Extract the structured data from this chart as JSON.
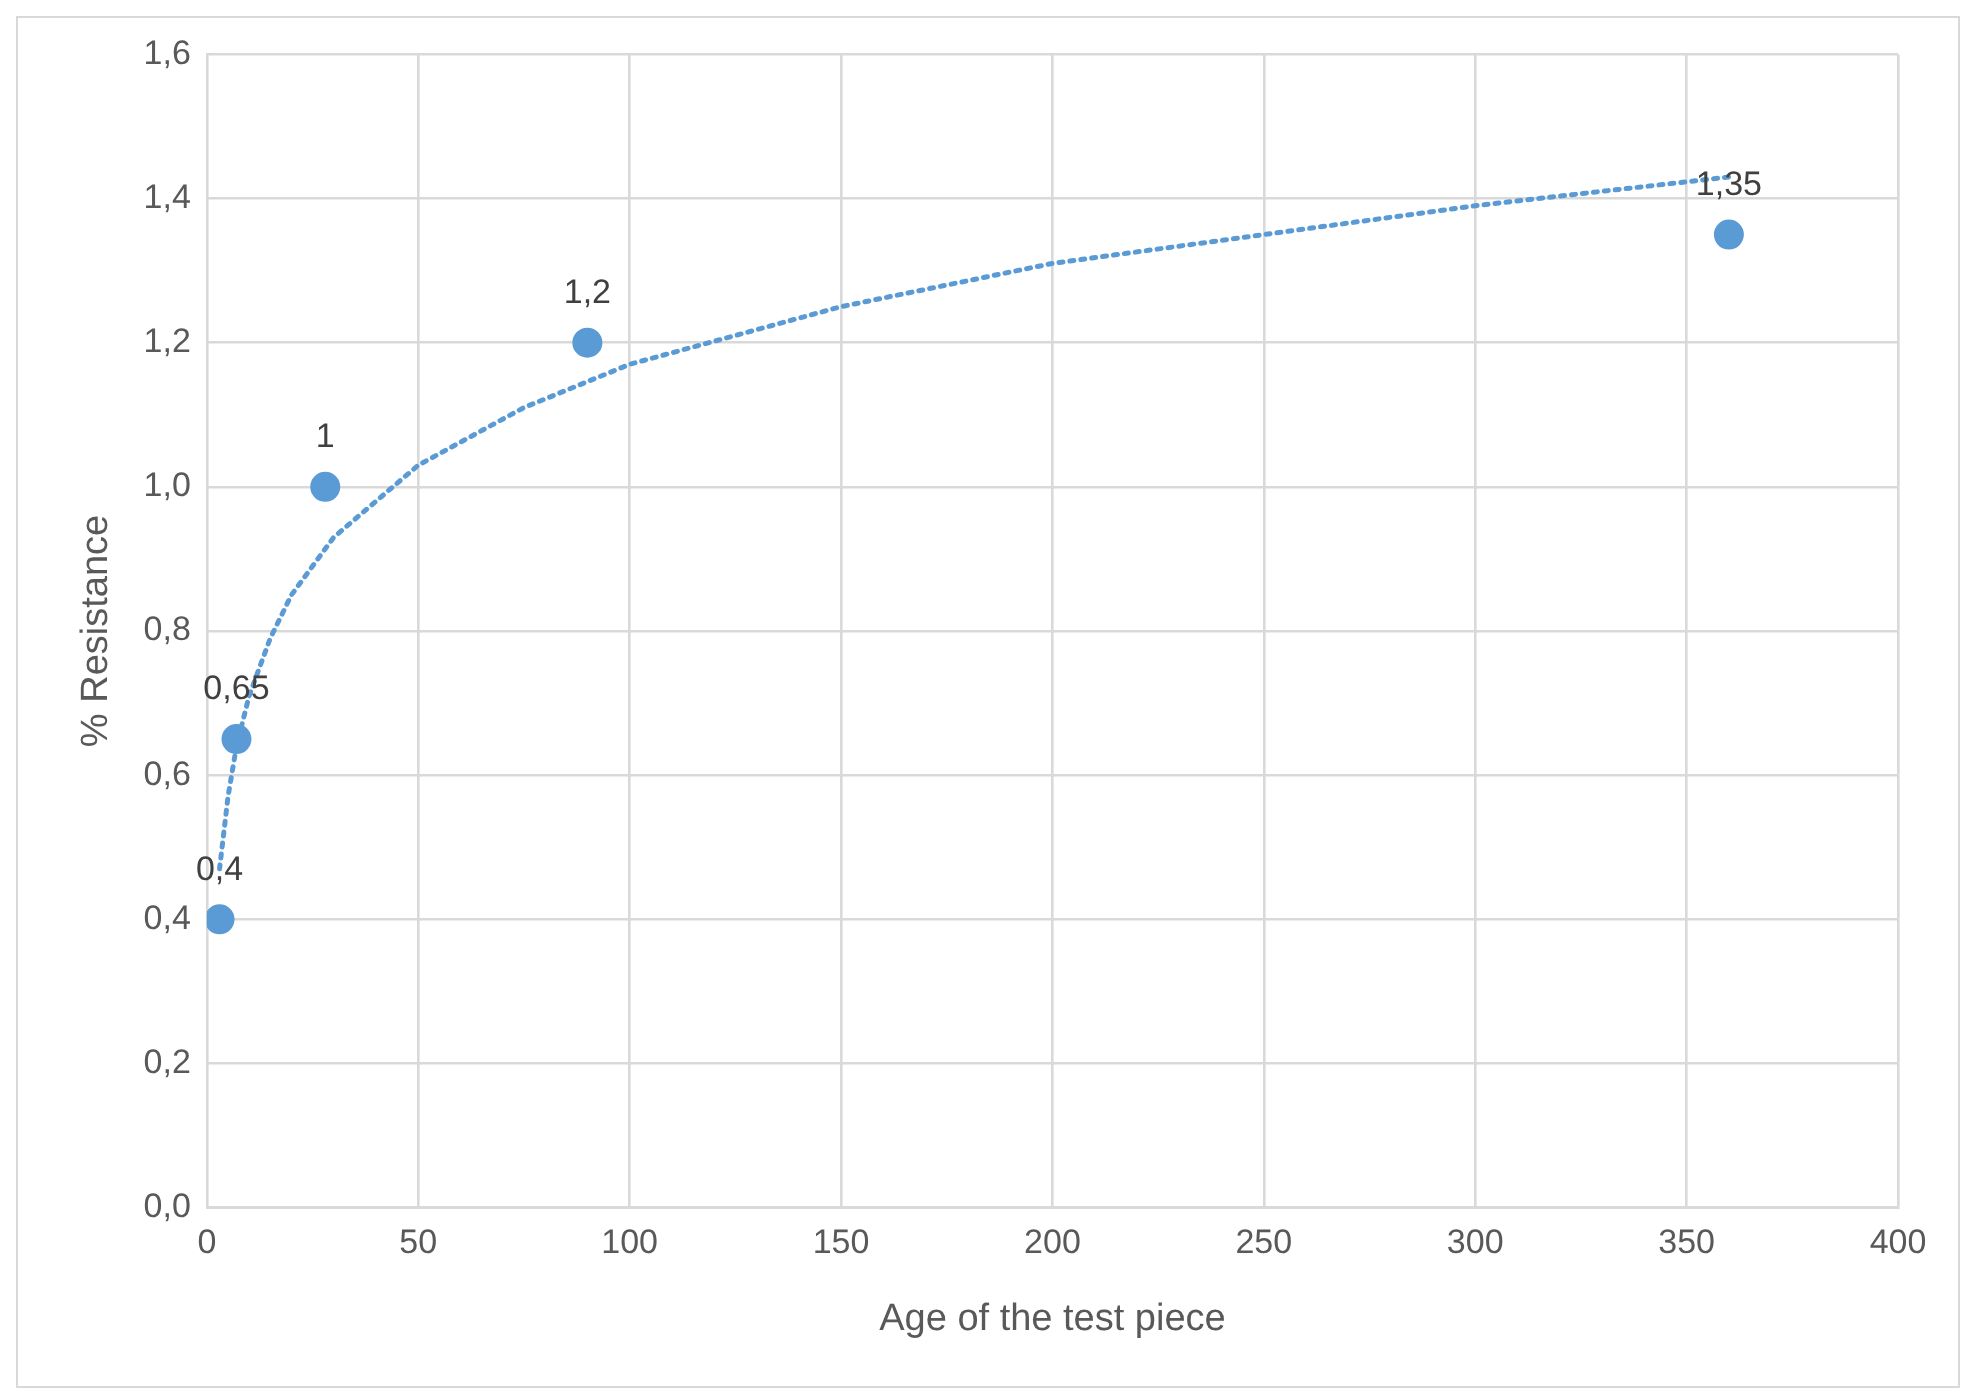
{
  "chart_data": {
    "type": "scatter",
    "xlabel": "Age of the test piece",
    "ylabel": "% Resistance",
    "x": [
      3,
      7,
      28,
      90,
      360
    ],
    "values": [
      0.4,
      0.65,
      1,
      1.2,
      1.35
    ],
    "color": "#5b9bd5",
    "marker": "circle",
    "value_labels": [
      "0,4",
      "0,65",
      "1",
      "1,2",
      "1,35"
    ],
    "series": [
      {
        "type": "line",
        "color": "#5b9bd5",
        "line_style": "dotted",
        "marker": "none",
        "x": [
          3,
          5,
          7,
          10,
          15,
          20,
          30,
          50,
          75,
          100,
          150,
          200,
          250,
          300,
          360
        ],
        "values": [
          0.47,
          0.57,
          0.64,
          0.71,
          0.79,
          0.85,
          0.93,
          1.03,
          1.11,
          1.17,
          1.25,
          1.31,
          1.35,
          1.39,
          1.43
        ]
      }
    ],
    "xlim": [
      0,
      400
    ],
    "xticks": [
      0,
      50,
      100,
      150,
      200,
      250,
      300,
      350,
      400
    ],
    "ylim": [
      0,
      1.6
    ],
    "yticks": [
      {
        "value": 0,
        "label": "0,0"
      },
      {
        "value": 0.2,
        "label": "0,2"
      },
      {
        "value": 0.4,
        "label": "0,4"
      },
      {
        "value": 0.6,
        "label": "0,6"
      },
      {
        "value": 0.8,
        "label": "0,8"
      },
      {
        "value": 1,
        "label": "1,0"
      },
      {
        "value": 1.2,
        "label": "1,2"
      },
      {
        "value": 1.4,
        "label": "1,4"
      },
      {
        "value": 1.6,
        "label": "1,6"
      }
    ],
    "grid": true,
    "legend": false
  }
}
